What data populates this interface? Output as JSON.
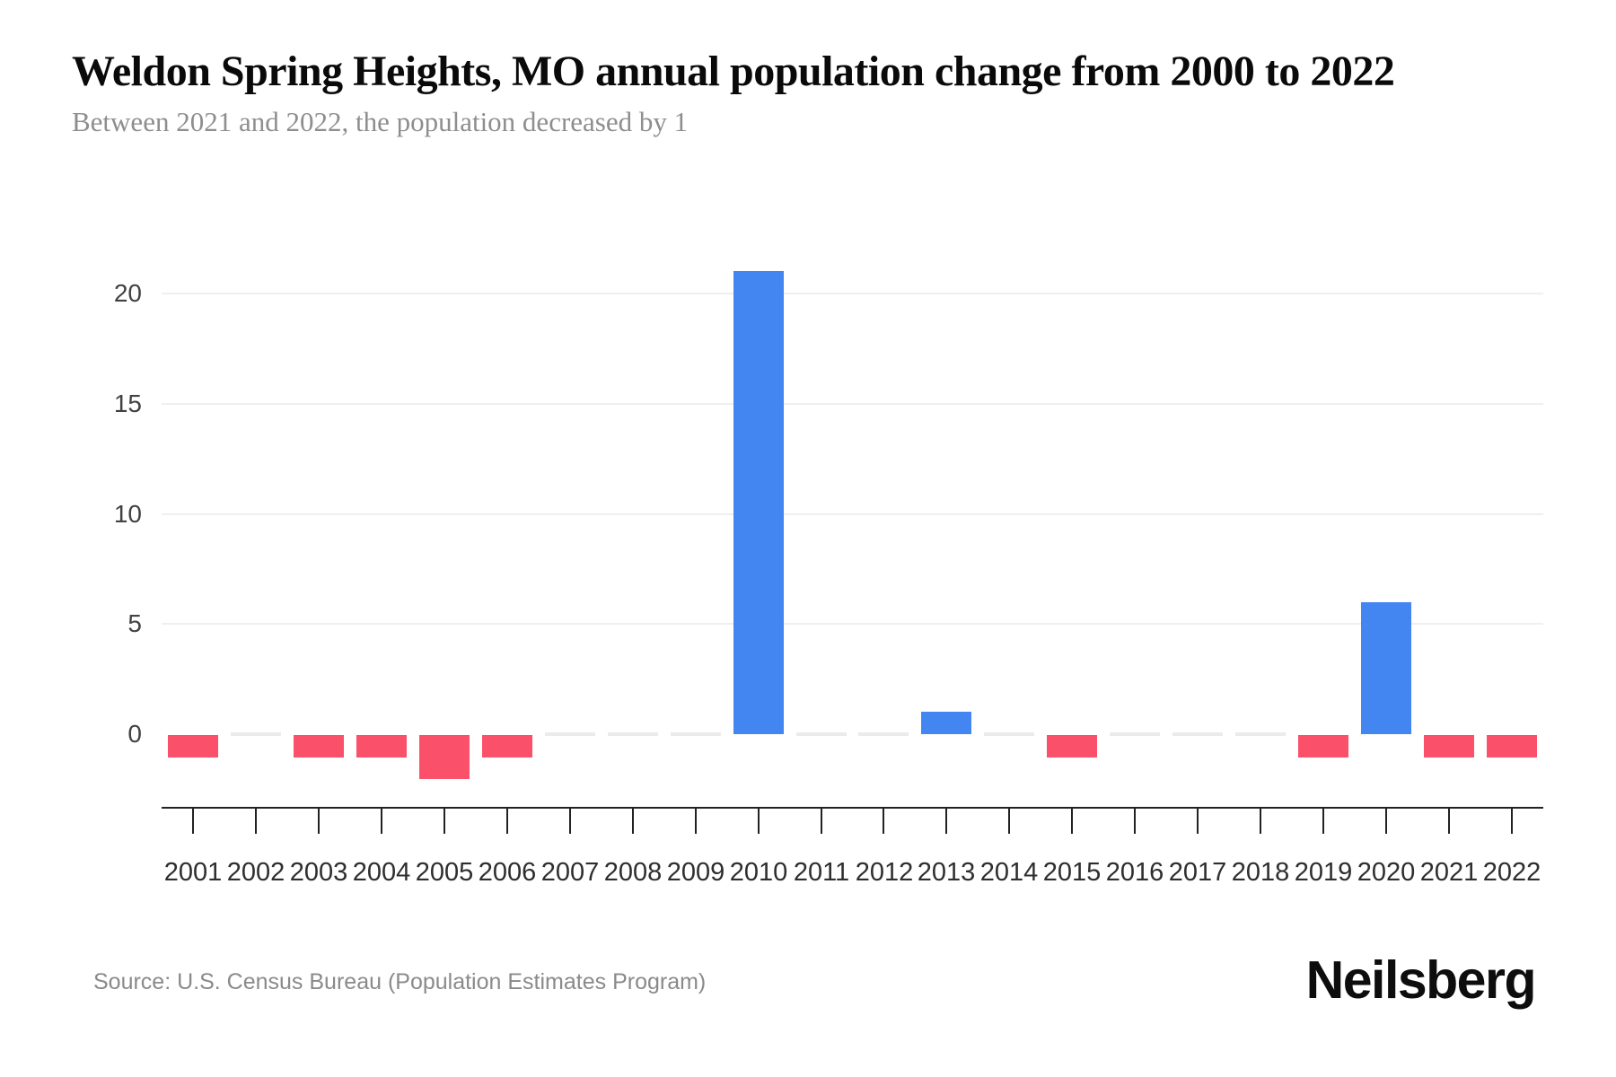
{
  "page": {
    "title": "Weldon Spring Heights, MO annual population change from 2000 to 2022",
    "subtitle": "Between 2021 and 2022, the population decreased by 1",
    "source": "Source: U.S. Census Bureau (Population Estimates Program)",
    "brand": "Neilsberg"
  },
  "chart_data": {
    "type": "bar",
    "title": "Weldon Spring Heights, MO annual population change from 2000 to 2022",
    "subtitle": "Between 2021 and 2022, the population decreased by 1",
    "source": "Source: U.S. Census Bureau (Population Estimates Program)",
    "categories": [
      "2001",
      "2002",
      "2003",
      "2004",
      "2005",
      "2006",
      "2007",
      "2008",
      "2009",
      "2010",
      "2011",
      "2012",
      "2013",
      "2014",
      "2015",
      "2016",
      "2017",
      "2018",
      "2019",
      "2020",
      "2021",
      "2022"
    ],
    "values": [
      -1,
      0,
      -1,
      -1,
      -2,
      -1,
      0,
      0,
      0,
      21,
      0,
      0,
      1,
      0,
      -1,
      0,
      0,
      0,
      -1,
      6,
      -1,
      -1
    ],
    "xlabel": "",
    "ylabel": "",
    "yticks": [
      0,
      5,
      10,
      15,
      20
    ],
    "ylim": [
      -3.3,
      21.6
    ],
    "grid": "horizontal-light",
    "legend": "none",
    "positive_color": "#4386F2",
    "negative_color": "#FA5069",
    "zero_marker_color": "#EBEBEB",
    "axis_color": "#222222",
    "gridline_color": "#EFEFEF"
  }
}
